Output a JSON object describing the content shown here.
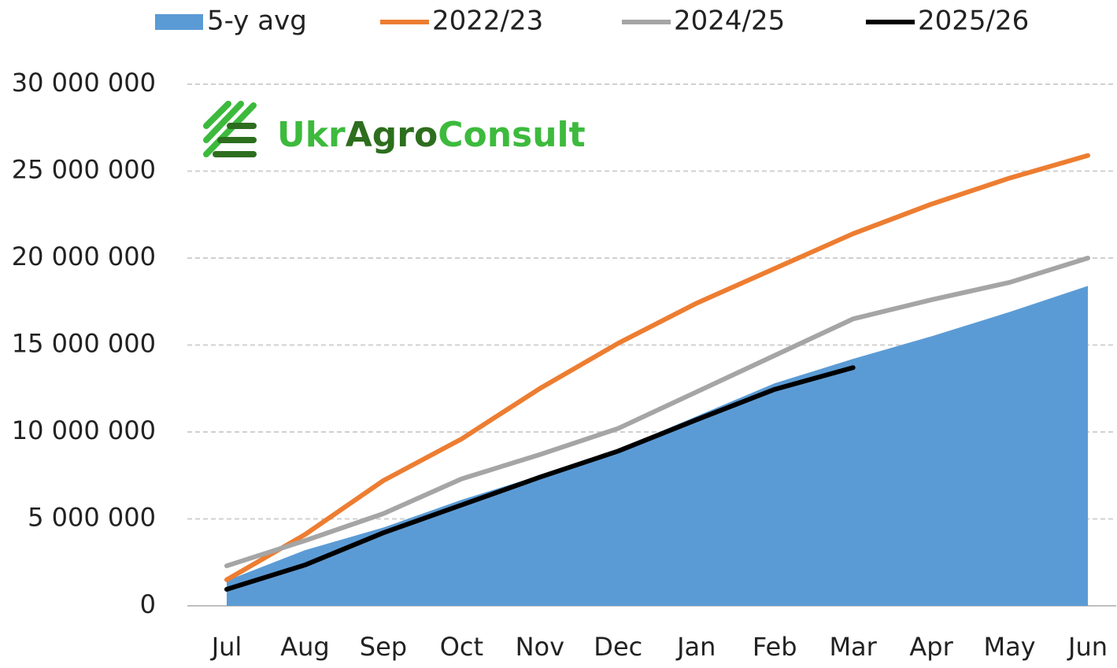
{
  "chart_data": {
    "type": "line",
    "legend": "top",
    "grid": true,
    "logo": [
      "Ukr",
      "Agro",
      "Consult"
    ],
    "categories": [
      "Jul",
      "Aug",
      "Sep",
      "Oct",
      "Nov",
      "Dec",
      "Jan",
      "Feb",
      "Mar",
      "Apr",
      "May",
      "Jun"
    ],
    "ylim": [
      0,
      30000000
    ],
    "yticks": [
      0,
      {
        "value": 5000000,
        "label": "5 000 000"
      },
      {
        "value": 10000000,
        "label": "10 000 000"
      },
      {
        "value": 15000000,
        "label": "15 000 000"
      },
      {
        "value": 20000000,
        "label": "20 000 000"
      },
      {
        "value": 25000000,
        "label": "25 000 000"
      },
      {
        "value": 30000000,
        "label": "30 000 000"
      }
    ],
    "series": [
      {
        "name": "5-y avg",
        "kind": "area",
        "color": "#5b9bd5",
        "values": [
          1450000,
          3200000,
          4500000,
          6100000,
          7500000,
          9000000,
          10900000,
          12800000,
          14200000,
          15500000,
          16900000,
          18400000
        ]
      },
      {
        "name": "2022/23",
        "kind": "line",
        "color": "#ed7d31",
        "values": [
          1500000,
          4100000,
          7200000,
          9600000,
          12500000,
          15100000,
          17400000,
          19400000,
          21400000,
          23100000,
          24600000,
          25900000
        ]
      },
      {
        "name": "2024/25",
        "kind": "line",
        "color": "#a5a5a5",
        "values": [
          2300000,
          3750000,
          5300000,
          7300000,
          8700000,
          10200000,
          12300000,
          14400000,
          16500000,
          17600000,
          18600000,
          20000000
        ]
      },
      {
        "name": "2025/26",
        "kind": "line",
        "color": "#000000",
        "values": [
          950000,
          2350000,
          4200000,
          5800000,
          7400000,
          8900000,
          10700000,
          12450000,
          13700000,
          null,
          null,
          null
        ]
      }
    ]
  }
}
